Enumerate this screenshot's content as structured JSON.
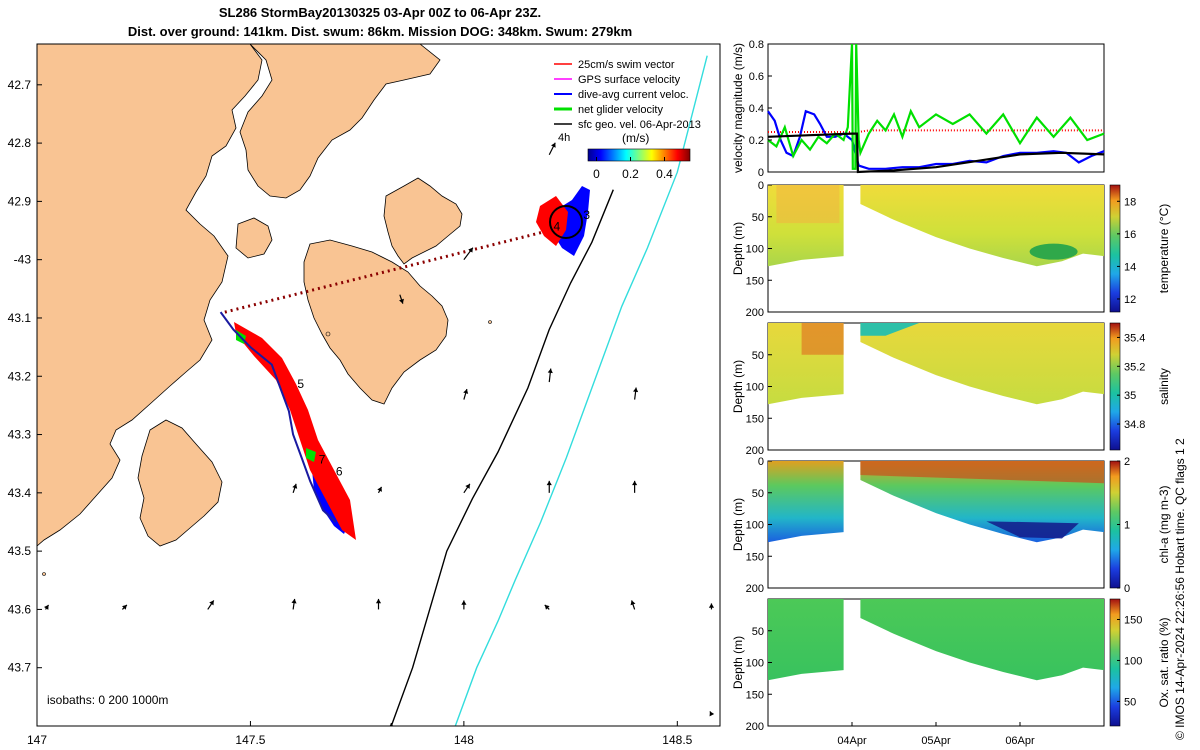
{
  "title": {
    "line1": "SL286 StormBay20130325 03-Apr 00Z to 06-Apr 23Z.",
    "line2": "Dist. over ground: 141km. Dist. swum: 86km. Mission DOG: 348km. Swum: 279km"
  },
  "credit": "© IMOS 14-Apr-2024 22:26:56 Hobart time. QC flags 1  2",
  "colors": {
    "land": "#f9c493",
    "coast": "#000000",
    "swim": "#ff0000",
    "gps": "#ff00ff",
    "current": "#0000ff",
    "net": "#00e000",
    "geo": "#000000",
    "isobath200": "#000000",
    "isobath1000": "#33dddd",
    "track": "#7a0000"
  },
  "chart_data": [
    {
      "type": "map",
      "name": "glider track map",
      "xlim": [
        147.0,
        148.6
      ],
      "ylim": [
        -43.8,
        -42.63
      ],
      "x_ticks": [
        147,
        147.5,
        148,
        148.5
      ],
      "x_tick_labels": [
        "147",
        "147.5",
        "148",
        "148.5"
      ],
      "y_ticks": [
        -42.7,
        -42.8,
        -42.9,
        -43.0,
        -43.1,
        -43.2,
        -43.3,
        -43.4,
        -43.5,
        -43.6,
        -43.7
      ],
      "y_tick_labels": [
        "42.7",
        "42.8",
        "42.9",
        "-43",
        "43.1",
        "43.2",
        "43.3",
        "43.4",
        "43.5",
        "43.6",
        "43.7"
      ],
      "legend": {
        "position": "top-right",
        "entries": [
          "25cm/s swim vector",
          "GPS surface velocity",
          "dive-avg current veloc.",
          "net glider velocity",
          "sfc geo. vel. 06-Apr-2013"
        ],
        "extra_label": "4h"
      },
      "colorbar": {
        "label": "(m/s)",
        "ticks": [
          0,
          0.2,
          0.4
        ],
        "tick_labels": [
          "0",
          "0.2",
          "0.4"
        ],
        "range": [
          -0.05,
          0.55
        ]
      },
      "isobath_label": "isobaths: 0   200  1000m",
      "track_lonlat": [
        [
          147.43,
          -43.09
        ],
        [
          147.46,
          -43.12
        ],
        [
          147.5,
          -43.15
        ],
        [
          147.55,
          -43.18
        ],
        [
          147.57,
          -43.22
        ],
        [
          147.59,
          -43.26
        ],
        [
          147.6,
          -43.3
        ],
        [
          147.62,
          -43.34
        ],
        [
          147.64,
          -43.38
        ],
        [
          147.67,
          -43.43
        ],
        [
          147.7,
          -43.45
        ]
      ],
      "track_day_labels": [
        {
          "lon": 147.61,
          "lat": -43.22,
          "text": "5"
        },
        {
          "lon": 147.66,
          "lat": -43.35,
          "text": "7"
        },
        {
          "lon": 147.7,
          "lat": -43.37,
          "text": "6"
        },
        {
          "lon": 148.21,
          "lat": -42.95,
          "text": "4"
        },
        {
          "lon": 148.28,
          "lat": -42.93,
          "text": "3"
        }
      ],
      "transect_lonlat": [
        [
          147.44,
          -43.09
        ],
        [
          148.2,
          -42.95
        ]
      ],
      "isobath_200_lonlat": [
        [
          148.35,
          -42.88
        ],
        [
          148.3,
          -42.97
        ],
        [
          148.25,
          -43.04
        ],
        [
          148.2,
          -43.12
        ],
        [
          148.15,
          -43.22
        ],
        [
          148.08,
          -43.33
        ],
        [
          148.02,
          -43.41
        ],
        [
          147.96,
          -43.5
        ],
        [
          147.92,
          -43.6
        ],
        [
          147.88,
          -43.7
        ],
        [
          147.83,
          -43.8
        ]
      ],
      "isobath_1000_lonlat": [
        [
          148.57,
          -42.65
        ],
        [
          148.5,
          -42.85
        ],
        [
          148.43,
          -42.98
        ],
        [
          148.37,
          -43.08
        ],
        [
          148.3,
          -43.22
        ],
        [
          148.24,
          -43.34
        ],
        [
          148.18,
          -43.45
        ],
        [
          148.12,
          -43.55
        ],
        [
          148.08,
          -43.62
        ],
        [
          148.03,
          -43.7
        ],
        [
          147.98,
          -43.8
        ]
      ],
      "geo_vectors": [
        {
          "lon": 148.2,
          "lat": -42.82,
          "u": 0.2,
          "v": 0.4
        },
        {
          "lon": 148.0,
          "lat": -43.0,
          "u": 0.3,
          "v": 0.4
        },
        {
          "lon": 147.85,
          "lat": -43.06,
          "u": 0.1,
          "v": -0.3
        },
        {
          "lon": 148.2,
          "lat": -43.21,
          "u": 0.05,
          "v": 0.45
        },
        {
          "lon": 148.0,
          "lat": -43.24,
          "u": 0.1,
          "v": 0.35
        },
        {
          "lon": 148.4,
          "lat": -43.24,
          "u": 0.05,
          "v": 0.4
        },
        {
          "lon": 148.4,
          "lat": -43.4,
          "u": 0.0,
          "v": 0.4
        },
        {
          "lon": 148.2,
          "lat": -43.4,
          "u": 0.0,
          "v": 0.4
        },
        {
          "lon": 148.0,
          "lat": -43.4,
          "u": 0.2,
          "v": 0.3
        },
        {
          "lon": 147.8,
          "lat": -43.4,
          "u": 0.1,
          "v": 0.2
        },
        {
          "lon": 147.6,
          "lat": -43.4,
          "u": 0.1,
          "v": 0.3
        },
        {
          "lon": 147.8,
          "lat": -43.6,
          "u": 0.0,
          "v": 0.35
        },
        {
          "lon": 147.6,
          "lat": -43.6,
          "u": 0.05,
          "v": 0.35
        },
        {
          "lon": 147.4,
          "lat": -43.6,
          "u": 0.2,
          "v": 0.3
        },
        {
          "lon": 147.2,
          "lat": -43.6,
          "u": 0.15,
          "v": 0.15
        },
        {
          "lon": 147.02,
          "lat": -43.6,
          "u": 0.1,
          "v": 0.15
        },
        {
          "lon": 148.0,
          "lat": -43.6,
          "u": 0.0,
          "v": 0.3
        },
        {
          "lon": 148.2,
          "lat": -43.6,
          "u": -0.15,
          "v": 0.15
        },
        {
          "lon": 148.4,
          "lat": -43.6,
          "u": -0.1,
          "v": 0.3
        },
        {
          "lon": 148.58,
          "lat": -43.6,
          "u": 0.0,
          "v": 0.2
        },
        {
          "lon": 148.58,
          "lat": -43.78,
          "u": -0.05,
          "v": 0.1
        },
        {
          "lon": 147.83,
          "lat": -43.8,
          "u": 0.0,
          "v": 0.1
        }
      ]
    },
    {
      "type": "line",
      "name": "velocity magnitude time series",
      "ylabel": "velocity magnitude (m/s)",
      "ylim": [
        0,
        0.8
      ],
      "y_ticks": [
        0,
        0.2,
        0.4,
        0.6,
        0.8
      ],
      "xlim_days": [
        0,
        4.0
      ],
      "x_ticks_days": [
        1,
        2,
        3
      ],
      "x_tick_labels": [
        "04Apr",
        "05Apr",
        "06Apr"
      ],
      "series": [
        {
          "name": "25cm/s swim vector",
          "color": "#ff0000",
          "style": "dotted",
          "x": [
            0,
            0.3,
            0.6,
            0.9,
            1.08,
            1.2,
            1.6,
            2.0,
            2.4,
            2.8,
            3.2,
            3.6,
            4.0
          ],
          "y": [
            0.25,
            0.25,
            0.25,
            0.25,
            0.25,
            0.26,
            0.26,
            0.26,
            0.26,
            0.26,
            0.26,
            0.26,
            0.26
          ]
        },
        {
          "name": "dive-avg current veloc.",
          "color": "#0000ff",
          "style": "solid",
          "x": [
            0,
            0.08,
            0.15,
            0.22,
            0.3,
            0.38,
            0.45,
            0.55,
            0.62,
            0.7,
            0.8,
            0.9,
            1.0,
            1.08,
            1.2,
            1.4,
            1.6,
            1.8,
            2.0,
            2.2,
            2.4,
            2.6,
            2.8,
            3.0,
            3.2,
            3.4,
            3.55,
            3.7,
            3.85,
            4.0
          ],
          "y": [
            0.38,
            0.32,
            0.2,
            0.12,
            0.1,
            0.22,
            0.38,
            0.36,
            0.3,
            0.22,
            0.22,
            0.24,
            0.2,
            0.04,
            0.02,
            0.02,
            0.03,
            0.03,
            0.05,
            0.05,
            0.07,
            0.06,
            0.1,
            0.12,
            0.12,
            0.13,
            0.12,
            0.06,
            0.1,
            0.13
          ]
        },
        {
          "name": "net glider velocity",
          "color": "#00e000",
          "style": "solid",
          "x": [
            0,
            0.1,
            0.2,
            0.3,
            0.4,
            0.5,
            0.6,
            0.7,
            0.8,
            0.9,
            0.95,
            1.0,
            1.01,
            1.04,
            1.05,
            1.08,
            1.1,
            1.2,
            1.3,
            1.4,
            1.5,
            1.6,
            1.7,
            1.8,
            2.0,
            2.2,
            2.4,
            2.6,
            2.8,
            3.0,
            3.2,
            3.4,
            3.6,
            3.8,
            4.0
          ],
          "y": [
            0.2,
            0.16,
            0.28,
            0.1,
            0.2,
            0.14,
            0.22,
            0.18,
            0.24,
            0.2,
            0.28,
            0.8,
            0.02,
            0.02,
            0.8,
            0.2,
            0.12,
            0.24,
            0.32,
            0.26,
            0.36,
            0.22,
            0.38,
            0.28,
            0.36,
            0.3,
            0.36,
            0.24,
            0.36,
            0.18,
            0.34,
            0.22,
            0.34,
            0.2,
            0.24
          ]
        },
        {
          "name": "sfc geo. vel. 06-Apr-2013",
          "color": "#000000",
          "style": "solid",
          "x": [
            0,
            0.5,
            1.0,
            1.06,
            1.07,
            1.5,
            2.0,
            2.5,
            3.0,
            3.5,
            4.0
          ],
          "y": [
            0.22,
            0.23,
            0.24,
            0.24,
            0.0,
            0.01,
            0.03,
            0.07,
            0.11,
            0.12,
            0.11
          ]
        }
      ]
    },
    {
      "type": "heatmap",
      "name": "temperature section",
      "ylabel": "Depth (m)",
      "cbar_label": "temperature (°C)",
      "y_ticks": [
        0,
        50,
        100,
        150,
        200
      ],
      "ylim": [
        200,
        0
      ],
      "cbar_ticks": [
        12,
        14,
        16,
        18
      ],
      "cbar_range": [
        11.2,
        19
      ],
      "base_value": 15.5,
      "shallow_value": 16.5,
      "deep_value": 14.5
    },
    {
      "type": "heatmap",
      "name": "salinity section",
      "ylabel": "Depth (m)",
      "cbar_label": "salinity",
      "y_ticks": [
        50,
        100,
        150,
        200
      ],
      "ylim": [
        200,
        0
      ],
      "cbar_ticks": [
        34.8,
        35,
        35.2,
        35.4
      ],
      "cbar_range": [
        34.62,
        35.5
      ],
      "base_value": 35.1,
      "shallow_value": 35.25,
      "deep_value": 35.0
    },
    {
      "type": "heatmap",
      "name": "chlorophyll section",
      "ylabel": "Depth (m)",
      "cbar_label": "chl-a (mg m-3)",
      "y_ticks": [
        0,
        50,
        100,
        150,
        200
      ],
      "ylim": [
        200,
        0
      ],
      "cbar_ticks": [
        0,
        1,
        2
      ],
      "cbar_range": [
        0,
        2
      ],
      "base_value": 1.0,
      "shallow_value": 1.7,
      "deep_value": 0.4
    },
    {
      "type": "heatmap",
      "name": "oxygen saturation section",
      "ylabel": "Depth (m)",
      "cbar_label": "Ox. sat. ratio (%)",
      "y_ticks": [
        50,
        100,
        150,
        200
      ],
      "ylim": [
        200,
        0
      ],
      "cbar_ticks": [
        50,
        100,
        150
      ],
      "cbar_range": [
        20,
        175
      ],
      "base_value": 100,
      "shallow_value": 102,
      "deep_value": 98
    }
  ]
}
